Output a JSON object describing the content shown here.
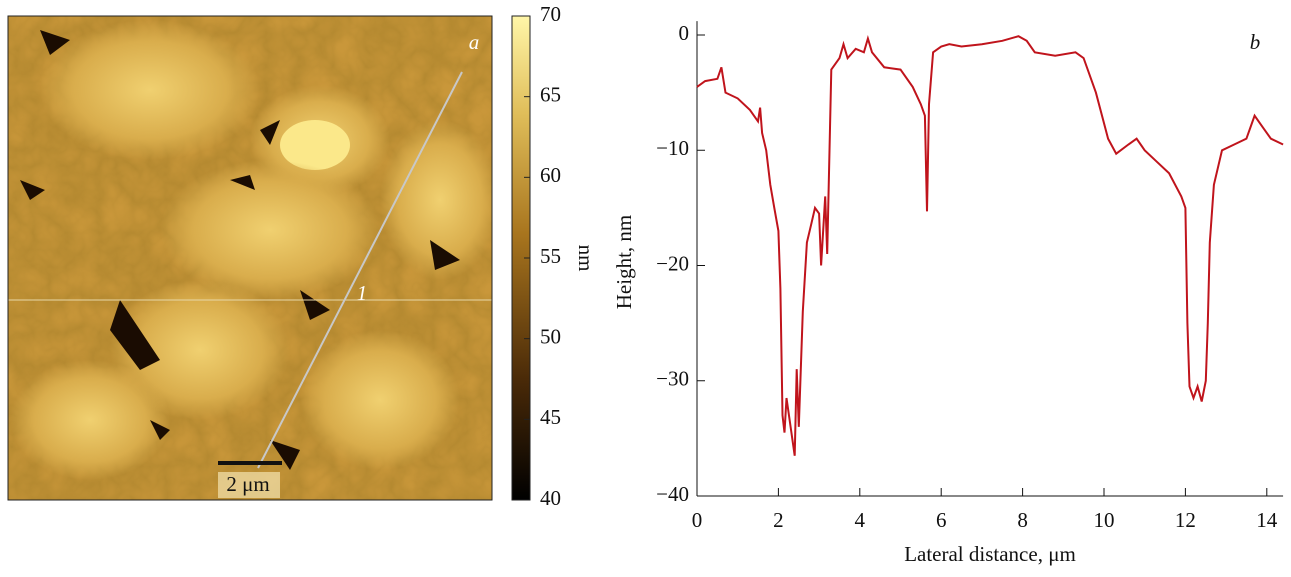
{
  "chart_data": [
    {
      "type": "image",
      "panel_label": "a",
      "line_label": "1",
      "scale_bar": "2 μm",
      "colorbar_label": "nm",
      "clim": [
        40,
        70
      ],
      "colorbar_ticks": [
        40,
        45,
        50,
        55,
        60,
        65,
        70
      ]
    },
    {
      "type": "line",
      "panel_label": "b",
      "xlabel": "Lateral  distance, μm",
      "ylabel": "Height, nm",
      "color": "#c0141c",
      "x": [
        0,
        0.2,
        0.5,
        0.6,
        0.7,
        1.0,
        1.3,
        1.5,
        1.55,
        1.6,
        1.7,
        1.8,
        1.9,
        2.0,
        2.05,
        2.1,
        2.15,
        2.2,
        2.3,
        2.4,
        2.45,
        2.5,
        2.6,
        2.7,
        2.8,
        2.9,
        3.0,
        3.05,
        3.15,
        3.2,
        3.3,
        3.5,
        3.6,
        3.7,
        3.9,
        4.1,
        4.2,
        4.3,
        4.6,
        5.0,
        5.3,
        5.5,
        5.6,
        5.65,
        5.7,
        5.8,
        6.0,
        6.2,
        6.5,
        7.0,
        7.5,
        7.9,
        8.1,
        8.3,
        8.8,
        9.3,
        9.5,
        9.8,
        10.1,
        10.3,
        10.6,
        10.8,
        11.0,
        11.3,
        11.6,
        11.9,
        12.0,
        12.05,
        12.1,
        12.2,
        12.3,
        12.4,
        12.5,
        12.55,
        12.6,
        12.7,
        12.9,
        13.2,
        13.5,
        13.7,
        13.9,
        14.1,
        14.4
      ],
      "values": [
        -4.5,
        -4,
        -3.8,
        -2.8,
        -5,
        -5.5,
        -6.5,
        -7.5,
        -6.3,
        -8.5,
        -10,
        -13,
        -15,
        -17,
        -22,
        -33,
        -34.5,
        -31.5,
        -34,
        -36.5,
        -29,
        -34,
        -24,
        -18,
        -16.5,
        -15,
        -15.5,
        -20,
        -14,
        -19,
        -3,
        -2,
        -0.8,
        -2,
        -1.2,
        -1.5,
        -0.3,
        -1.5,
        -2.8,
        -3,
        -4.5,
        -6,
        -7,
        -15.3,
        -6,
        -1.5,
        -1,
        -0.8,
        -1,
        -0.8,
        -0.5,
        -0.1,
        -0.5,
        -1.5,
        -1.8,
        -1.5,
        -2,
        -5,
        -9,
        -10.3,
        -9.5,
        -9,
        -10,
        -11,
        -12,
        -14,
        -15,
        -25,
        -30.5,
        -31.5,
        -30.5,
        -31.8,
        -30,
        -25,
        -18,
        -13,
        -10,
        -9.5,
        -9,
        -7,
        -8,
        -9,
        -9.5
      ],
      "xlim": [
        0,
        14.4
      ],
      "ylim": [
        -40,
        1.2
      ],
      "xticks": [
        0,
        2,
        4,
        6,
        8,
        10,
        12,
        14
      ],
      "yticks": [
        {
          "value": -40,
          "label": "−40"
        },
        {
          "value": -30,
          "label": "−30"
        },
        {
          "value": -20,
          "label": "−20"
        },
        {
          "value": -10,
          "label": "−10"
        },
        0
      ]
    }
  ]
}
